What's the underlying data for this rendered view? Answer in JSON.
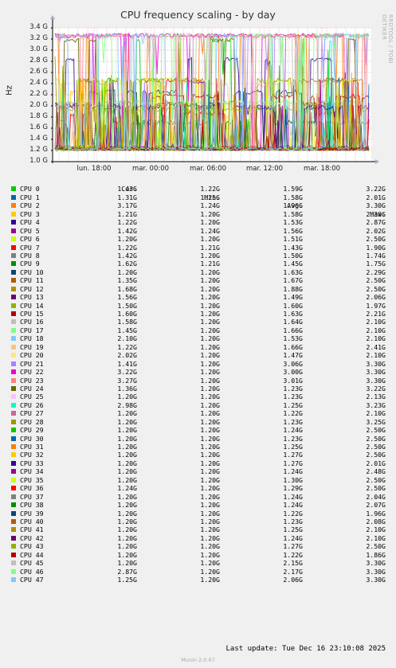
{
  "chart_data": {
    "type": "line",
    "title": "CPU frequency scaling - by day",
    "ylabel": "Hz",
    "ylim": [
      1.0,
      3.4
    ],
    "yticks": [
      "1.0 G",
      "1.2 G",
      "1.4 G",
      "1.6 G",
      "1.8 G",
      "2.0 G",
      "2.2 G",
      "2.4 G",
      "2.6 G",
      "2.8 G",
      "3.0 G",
      "3.2 G",
      "3.4 G"
    ],
    "xticks": [
      "lun. 18:00",
      "mar. 00:00",
      "mar. 06:00",
      "mar. 12:00",
      "mar. 18:00"
    ],
    "legend_headers": [
      "Cur:",
      "Min:",
      "Avg:",
      "Max:"
    ],
    "series": [
      {
        "name": "CPU 0",
        "color": "#00cc00",
        "cur": "1.43G",
        "min": "1.22G",
        "avg": "1.59G",
        "max": "3.22G"
      },
      {
        "name": "CPU 1",
        "color": "#0066b3",
        "cur": "1.31G",
        "min": "1.25G",
        "avg": "1.58G",
        "max": "2.01G"
      },
      {
        "name": "CPU 2",
        "color": "#ff8000",
        "cur": "3.17G",
        "min": "1.24G",
        "avg": "1.96G",
        "max": "3.30G"
      },
      {
        "name": "CPU 3",
        "color": "#ffcc00",
        "cur": "1.21G",
        "min": "1.20G",
        "avg": "1.58G",
        "max": "2.30G"
      },
      {
        "name": "CPU 4",
        "color": "#330099",
        "cur": "1.22G",
        "min": "1.20G",
        "avg": "1.53G",
        "max": "2.87G"
      },
      {
        "name": "CPU 5",
        "color": "#990099",
        "cur": "1.42G",
        "min": "1.24G",
        "avg": "1.56G",
        "max": "2.02G"
      },
      {
        "name": "CPU 6",
        "color": "#ccff00",
        "cur": "1.20G",
        "min": "1.20G",
        "avg": "1.51G",
        "max": "2.50G"
      },
      {
        "name": "CPU 7",
        "color": "#ff0000",
        "cur": "1.22G",
        "min": "1.21G",
        "avg": "1.43G",
        "max": "1.90G"
      },
      {
        "name": "CPU 8",
        "color": "#808080",
        "cur": "1.42G",
        "min": "1.20G",
        "avg": "1.50G",
        "max": "1.74G"
      },
      {
        "name": "CPU 9",
        "color": "#008f00",
        "cur": "1.62G",
        "min": "1.21G",
        "avg": "1.45G",
        "max": "1.75G"
      },
      {
        "name": "CPU 10",
        "color": "#00487d",
        "cur": "1.20G",
        "min": "1.20G",
        "avg": "1.63G",
        "max": "2.29G"
      },
      {
        "name": "CPU 11",
        "color": "#b35a00",
        "cur": "1.35G",
        "min": "1.20G",
        "avg": "1.67G",
        "max": "2.50G"
      },
      {
        "name": "CPU 12",
        "color": "#b38f00",
        "cur": "1.68G",
        "min": "1.20G",
        "avg": "1.88G",
        "max": "2.50G"
      },
      {
        "name": "CPU 13",
        "color": "#6b006b",
        "cur": "1.56G",
        "min": "1.20G",
        "avg": "1.49G",
        "max": "2.06G"
      },
      {
        "name": "CPU 14",
        "color": "#8fb300",
        "cur": "1.50G",
        "min": "1.20G",
        "avg": "1.60G",
        "max": "1.97G"
      },
      {
        "name": "CPU 15",
        "color": "#b30000",
        "cur": "1.60G",
        "min": "1.20G",
        "avg": "1.63G",
        "max": "2.21G"
      },
      {
        "name": "CPU 16",
        "color": "#bebebe",
        "cur": "1.58G",
        "min": "1.20G",
        "avg": "1.64G",
        "max": "2.10G"
      },
      {
        "name": "CPU 17",
        "color": "#80ff80",
        "cur": "1.45G",
        "min": "1.20G",
        "avg": "1.66G",
        "max": "2.10G"
      },
      {
        "name": "CPU 18",
        "color": "#80c9ff",
        "cur": "2.10G",
        "min": "1.20G",
        "avg": "1.53G",
        "max": "2.10G"
      },
      {
        "name": "CPU 19",
        "color": "#ffc080",
        "cur": "1.22G",
        "min": "1.20G",
        "avg": "1.66G",
        "max": "2.41G"
      },
      {
        "name": "CPU 20",
        "color": "#ffe680",
        "cur": "2.02G",
        "min": "1.20G",
        "avg": "1.47G",
        "max": "2.10G"
      },
      {
        "name": "CPU 21",
        "color": "#aa80ff",
        "cur": "1.41G",
        "min": "1.20G",
        "avg": "3.06G",
        "max": "3.30G"
      },
      {
        "name": "CPU 22",
        "color": "#ee00cc",
        "cur": "3.22G",
        "min": "1.20G",
        "avg": "3.00G",
        "max": "3.30G"
      },
      {
        "name": "CPU 23",
        "color": "#ff8080",
        "cur": "3.27G",
        "min": "1.20G",
        "avg": "3.01G",
        "max": "3.30G"
      },
      {
        "name": "CPU 24",
        "color": "#666600",
        "cur": "1.36G",
        "min": "1.20G",
        "avg": "1.23G",
        "max": "3.22G"
      },
      {
        "name": "CPU 25",
        "color": "#ffbfff",
        "cur": "1.20G",
        "min": "1.20G",
        "avg": "1.23G",
        "max": "2.13G"
      },
      {
        "name": "CPU 26",
        "color": "#00ffcc",
        "cur": "2.98G",
        "min": "1.20G",
        "avg": "1.25G",
        "max": "3.23G"
      },
      {
        "name": "CPU 27",
        "color": "#cc6699",
        "cur": "1.20G",
        "min": "1.20G",
        "avg": "1.22G",
        "max": "2.10G"
      },
      {
        "name": "CPU 28",
        "color": "#999900",
        "cur": "1.20G",
        "min": "1.20G",
        "avg": "1.23G",
        "max": "3.25G"
      },
      {
        "name": "CPU 29",
        "color": "#00cc00",
        "cur": "1.20G",
        "min": "1.20G",
        "avg": "1.24G",
        "max": "2.50G"
      },
      {
        "name": "CPU 30",
        "color": "#0066b3",
        "cur": "1.20G",
        "min": "1.20G",
        "avg": "1.23G",
        "max": "2.50G"
      },
      {
        "name": "CPU 31",
        "color": "#ff8000",
        "cur": "1.20G",
        "min": "1.20G",
        "avg": "1.25G",
        "max": "2.50G"
      },
      {
        "name": "CPU 32",
        "color": "#ffcc00",
        "cur": "1.20G",
        "min": "1.20G",
        "avg": "1.27G",
        "max": "2.50G"
      },
      {
        "name": "CPU 33",
        "color": "#330099",
        "cur": "1.20G",
        "min": "1.20G",
        "avg": "1.27G",
        "max": "2.01G"
      },
      {
        "name": "CPU 34",
        "color": "#990099",
        "cur": "1.20G",
        "min": "1.20G",
        "avg": "1.24G",
        "max": "2.48G"
      },
      {
        "name": "CPU 35",
        "color": "#ccff00",
        "cur": "1.20G",
        "min": "1.20G",
        "avg": "1.30G",
        "max": "2.50G"
      },
      {
        "name": "CPU 36",
        "color": "#ff0000",
        "cur": "1.24G",
        "min": "1.20G",
        "avg": "1.29G",
        "max": "2.50G"
      },
      {
        "name": "CPU 37",
        "color": "#808080",
        "cur": "1.20G",
        "min": "1.20G",
        "avg": "1.24G",
        "max": "2.04G"
      },
      {
        "name": "CPU 38",
        "color": "#008f00",
        "cur": "1.20G",
        "min": "1.20G",
        "avg": "1.24G",
        "max": "2.07G"
      },
      {
        "name": "CPU 39",
        "color": "#00487d",
        "cur": "1.20G",
        "min": "1.20G",
        "avg": "1.22G",
        "max": "1.96G"
      },
      {
        "name": "CPU 40",
        "color": "#b35a00",
        "cur": "1.20G",
        "min": "1.20G",
        "avg": "1.23G",
        "max": "2.08G"
      },
      {
        "name": "CPU 41",
        "color": "#b38f00",
        "cur": "1.20G",
        "min": "1.20G",
        "avg": "1.25G",
        "max": "2.10G"
      },
      {
        "name": "CPU 42",
        "color": "#6b006b",
        "cur": "1.20G",
        "min": "1.20G",
        "avg": "1.24G",
        "max": "2.10G"
      },
      {
        "name": "CPU 43",
        "color": "#8fb300",
        "cur": "1.20G",
        "min": "1.20G",
        "avg": "1.27G",
        "max": "2.50G"
      },
      {
        "name": "CPU 44",
        "color": "#b30000",
        "cur": "1.20G",
        "min": "1.20G",
        "avg": "1.22G",
        "max": "1.86G"
      },
      {
        "name": "CPU 45",
        "color": "#bebebe",
        "cur": "1.20G",
        "min": "1.20G",
        "avg": "2.15G",
        "max": "3.30G"
      },
      {
        "name": "CPU 46",
        "color": "#80ff80",
        "cur": "2.87G",
        "min": "1.20G",
        "avg": "2.17G",
        "max": "3.30G"
      },
      {
        "name": "CPU 47",
        "color": "#80c9ff",
        "cur": "1.25G",
        "min": "1.20G",
        "avg": "2.06G",
        "max": "3.30G"
      }
    ]
  },
  "side_text": "RRDTOOL / TOBI OETIKER",
  "last_update": "Last update: Tue Dec 16 23:10:08 2025",
  "footer": "Munin 2.0.67"
}
